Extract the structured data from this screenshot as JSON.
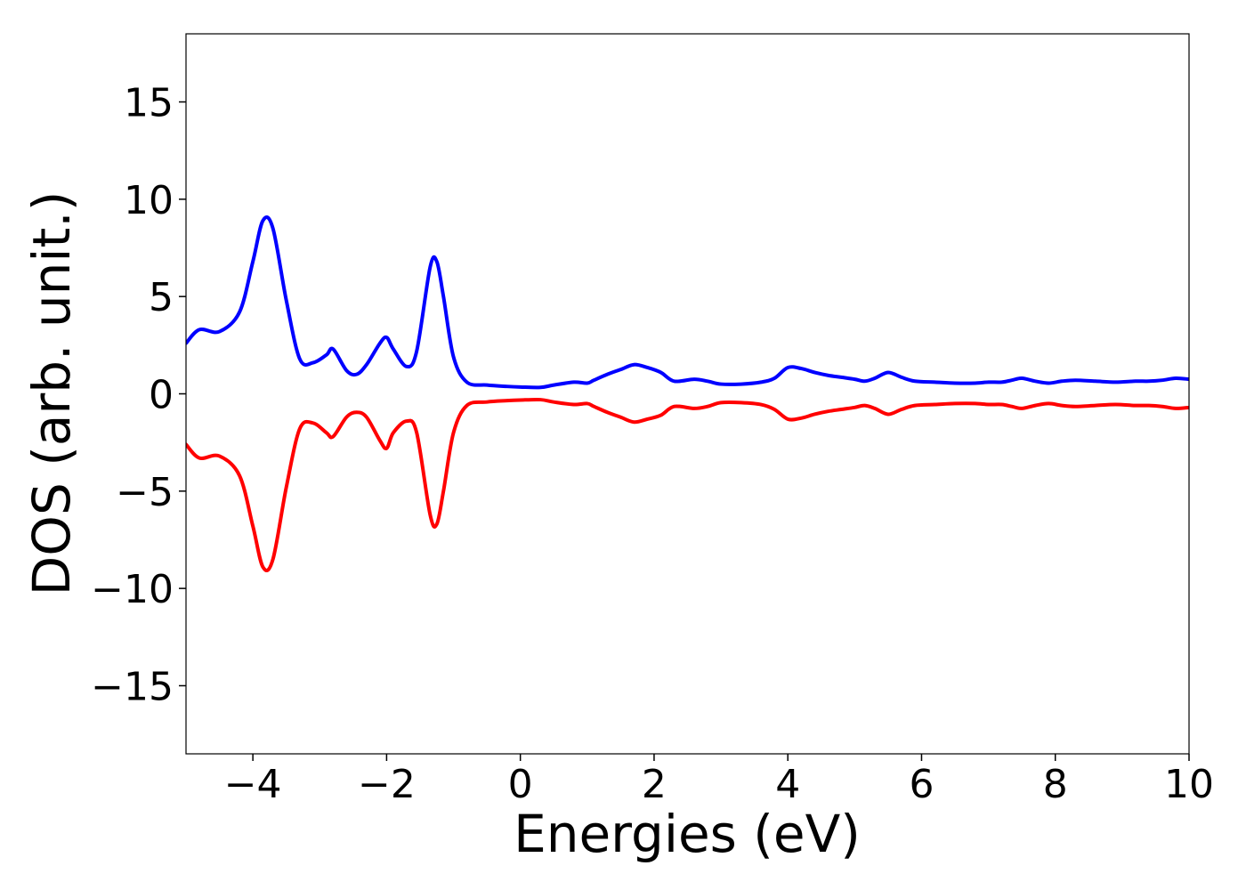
{
  "chart_data": {
    "type": "line",
    "title": "",
    "xlabel": "Energies (eV)",
    "ylabel": "DOS (arb. unit.)",
    "xlim": [
      -5,
      10
    ],
    "ylim": [
      -18.5,
      18.5
    ],
    "xticks": [
      -4,
      -2,
      0,
      2,
      4,
      6,
      8,
      10
    ],
    "xtick_labels": [
      "−4",
      "−2",
      "0",
      "2",
      "4",
      "6",
      "8",
      "10"
    ],
    "yticks": [
      15,
      10,
      5,
      0,
      -5,
      -10,
      -15
    ],
    "ytick_labels": [
      "15",
      "10",
      "5",
      "0",
      "−5",
      "−10",
      "−15"
    ],
    "grid": false,
    "legend": null,
    "series": [
      {
        "color": "#0000ff",
        "x": [
          -5.0,
          -4.8,
          -4.5,
          -4.2,
          -4.0,
          -3.85,
          -3.7,
          -3.5,
          -3.3,
          -3.1,
          -2.9,
          -2.8,
          -2.6,
          -2.45,
          -2.3,
          -2.1,
          -2.0,
          -1.9,
          -1.7,
          -1.55,
          -1.35,
          -1.25,
          -1.15,
          -1.0,
          -0.8,
          -0.5,
          -0.2,
          0.0,
          0.3,
          0.5,
          0.8,
          1.0,
          1.1,
          1.3,
          1.5,
          1.7,
          1.9,
          2.1,
          2.3,
          2.6,
          2.8,
          3.0,
          3.3,
          3.6,
          3.8,
          4.0,
          4.2,
          4.4,
          4.6,
          4.8,
          5.0,
          5.15,
          5.3,
          5.5,
          5.7,
          5.9,
          6.2,
          6.5,
          6.8,
          7.0,
          7.2,
          7.35,
          7.5,
          7.7,
          7.9,
          8.1,
          8.3,
          8.6,
          8.9,
          9.2,
          9.4,
          9.6,
          9.8,
          10.0
        ],
        "y": [
          2.6,
          3.3,
          3.2,
          4.2,
          6.8,
          8.9,
          8.5,
          4.8,
          1.8,
          1.6,
          2.0,
          2.3,
          1.2,
          1.0,
          1.5,
          2.6,
          2.9,
          2.3,
          1.4,
          2.2,
          6.5,
          6.8,
          5.0,
          1.9,
          0.6,
          0.45,
          0.38,
          0.35,
          0.33,
          0.45,
          0.6,
          0.55,
          0.7,
          1.0,
          1.25,
          1.5,
          1.35,
          1.1,
          0.65,
          0.75,
          0.65,
          0.5,
          0.5,
          0.6,
          0.8,
          1.35,
          1.3,
          1.1,
          0.95,
          0.85,
          0.75,
          0.65,
          0.8,
          1.1,
          0.85,
          0.65,
          0.6,
          0.55,
          0.55,
          0.6,
          0.6,
          0.7,
          0.8,
          0.65,
          0.55,
          0.65,
          0.7,
          0.65,
          0.6,
          0.65,
          0.65,
          0.7,
          0.8,
          0.75
        ]
      },
      {
        "color": "#ff0000",
        "x": [
          -5.0,
          -4.8,
          -4.5,
          -4.2,
          -4.0,
          -3.85,
          -3.7,
          -3.5,
          -3.3,
          -3.1,
          -2.9,
          -2.8,
          -2.6,
          -2.45,
          -2.3,
          -2.1,
          -2.0,
          -1.9,
          -1.7,
          -1.55,
          -1.35,
          -1.25,
          -1.15,
          -1.0,
          -0.8,
          -0.5,
          -0.2,
          0.0,
          0.3,
          0.5,
          0.8,
          1.0,
          1.1,
          1.3,
          1.5,
          1.7,
          1.9,
          2.1,
          2.3,
          2.6,
          2.8,
          3.0,
          3.3,
          3.6,
          3.8,
          4.0,
          4.2,
          4.4,
          4.6,
          4.8,
          5.0,
          5.15,
          5.3,
          5.5,
          5.7,
          5.9,
          6.2,
          6.5,
          6.8,
          7.0,
          7.2,
          7.35,
          7.5,
          7.7,
          7.9,
          8.1,
          8.3,
          8.6,
          8.9,
          9.2,
          9.4,
          9.6,
          9.8,
          10.0
        ],
        "y": [
          -2.6,
          -3.3,
          -3.2,
          -4.2,
          -6.8,
          -8.9,
          -8.5,
          -4.8,
          -1.8,
          -1.5,
          -2.0,
          -2.2,
          -1.2,
          -0.95,
          -1.2,
          -2.4,
          -2.8,
          -2.0,
          -1.4,
          -2.0,
          -6.2,
          -6.7,
          -5.0,
          -2.0,
          -0.6,
          -0.42,
          -0.35,
          -0.32,
          -0.3,
          -0.42,
          -0.55,
          -0.5,
          -0.65,
          -0.95,
          -1.2,
          -1.45,
          -1.3,
          -1.1,
          -0.65,
          -0.75,
          -0.65,
          -0.45,
          -0.45,
          -0.55,
          -0.8,
          -1.3,
          -1.25,
          -1.05,
          -0.9,
          -0.8,
          -0.7,
          -0.6,
          -0.75,
          -1.05,
          -0.8,
          -0.6,
          -0.55,
          -0.5,
          -0.5,
          -0.55,
          -0.55,
          -0.65,
          -0.75,
          -0.6,
          -0.5,
          -0.6,
          -0.65,
          -0.6,
          -0.55,
          -0.6,
          -0.6,
          -0.65,
          -0.75,
          -0.7
        ]
      }
    ]
  }
}
